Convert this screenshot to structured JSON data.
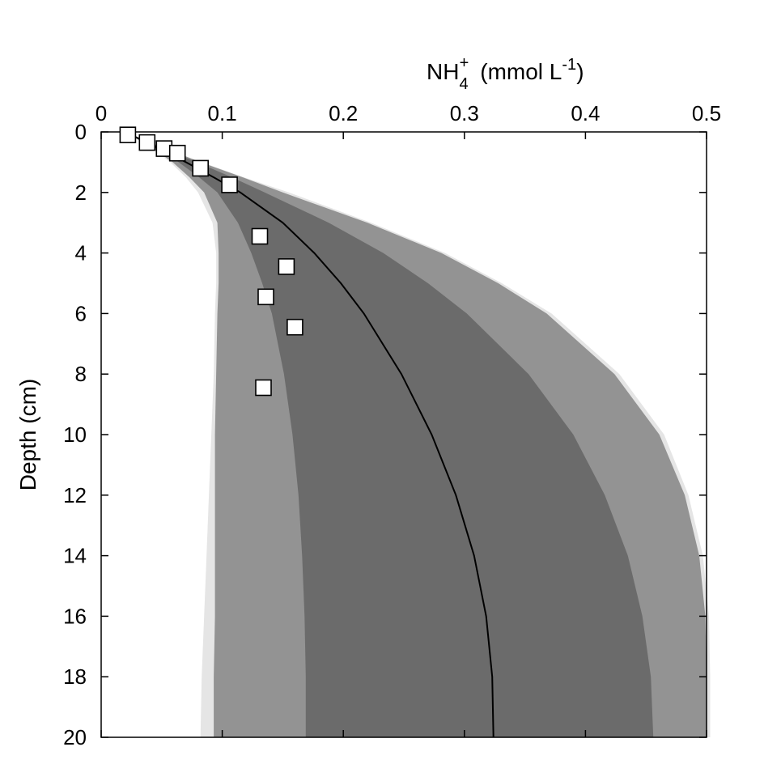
{
  "chart_data": {
    "type": "scatter",
    "x_axis": {
      "label_base": "NH",
      "label_sub": "4",
      "label_sup": "+",
      "label_units": "(mmol L",
      "label_units_sup": "-1",
      "label_units_close": ")",
      "position": "top",
      "range": [
        0,
        0.5
      ],
      "ticks": [
        0,
        0.1,
        0.2,
        0.3,
        0.4,
        0.5
      ],
      "tick_labels": [
        "0",
        "0.1",
        "0.2",
        "0.3",
        "0.4",
        "0.5"
      ]
    },
    "y_axis": {
      "label": "Depth (cm)",
      "range": [
        0,
        20
      ],
      "inverted": true,
      "ticks": [
        0,
        2,
        4,
        6,
        8,
        10,
        12,
        14,
        16,
        18,
        20
      ],
      "tick_labels": [
        "0",
        "2",
        "4",
        "6",
        "8",
        "10",
        "12",
        "14",
        "16",
        "18",
        "20"
      ]
    },
    "grid": false,
    "model_line": {
      "depth": [
        0,
        0.5,
        1,
        1.5,
        2,
        3,
        4,
        5,
        6,
        8,
        10,
        12,
        14,
        16,
        18,
        20
      ],
      "value": [
        0.02,
        0.045,
        0.07,
        0.093,
        0.115,
        0.15,
        0.176,
        0.198,
        0.217,
        0.248,
        0.273,
        0.293,
        0.308,
        0.318,
        0.323,
        0.324
      ]
    },
    "bands": [
      {
        "color": "#e5e5e5",
        "depth": [
          0,
          0.5,
          1,
          1.5,
          2,
          3,
          4,
          5,
          6,
          8,
          10,
          12,
          14,
          16,
          18,
          20
        ],
        "lower": [
          0.02,
          0.04,
          0.057,
          0.07,
          0.08,
          0.092,
          0.095,
          0.095,
          0.094,
          0.093,
          0.091,
          0.089,
          0.087,
          0.085,
          0.083,
          0.082
        ],
        "upper": [
          0.02,
          0.05,
          0.083,
          0.118,
          0.155,
          0.223,
          0.284,
          0.331,
          0.372,
          0.428,
          0.465,
          0.485,
          0.497,
          0.502,
          0.503,
          0.503
        ]
      },
      {
        "color": "#939393",
        "depth": [
          0,
          0.5,
          1,
          1.5,
          2,
          3,
          4,
          5,
          6,
          8,
          10,
          12,
          14,
          16,
          18,
          20
        ],
        "lower": [
          0.02,
          0.041,
          0.059,
          0.073,
          0.085,
          0.096,
          0.097,
          0.097,
          0.096,
          0.095,
          0.094,
          0.094,
          0.094,
          0.094,
          0.093,
          0.093
        ],
        "upper": [
          0.02,
          0.05,
          0.082,
          0.117,
          0.15,
          0.22,
          0.281,
          0.328,
          0.368,
          0.424,
          0.461,
          0.482,
          0.494,
          0.499,
          0.5,
          0.5
        ]
      },
      {
        "color": "#6b6b6b",
        "depth": [
          0,
          0.5,
          1,
          1.5,
          2,
          3,
          4,
          5,
          6,
          8,
          10,
          12,
          14,
          16,
          18,
          20
        ],
        "lower": [
          0.02,
          0.043,
          0.064,
          0.081,
          0.096,
          0.113,
          0.124,
          0.133,
          0.141,
          0.151,
          0.158,
          0.163,
          0.166,
          0.168,
          0.169,
          0.169
        ],
        "upper": [
          0.02,
          0.049,
          0.079,
          0.108,
          0.135,
          0.188,
          0.233,
          0.27,
          0.302,
          0.353,
          0.39,
          0.416,
          0.435,
          0.447,
          0.454,
          0.456
        ]
      }
    ],
    "observations": {
      "marker": "square",
      "x": [
        0.022,
        0.038,
        0.052,
        0.063,
        0.082,
        0.106,
        0.131,
        0.153,
        0.136,
        0.16,
        0.134
      ],
      "y": [
        0.1,
        0.35,
        0.55,
        0.7,
        1.2,
        1.75,
        3.45,
        4.45,
        5.45,
        6.45,
        8.45
      ]
    }
  }
}
